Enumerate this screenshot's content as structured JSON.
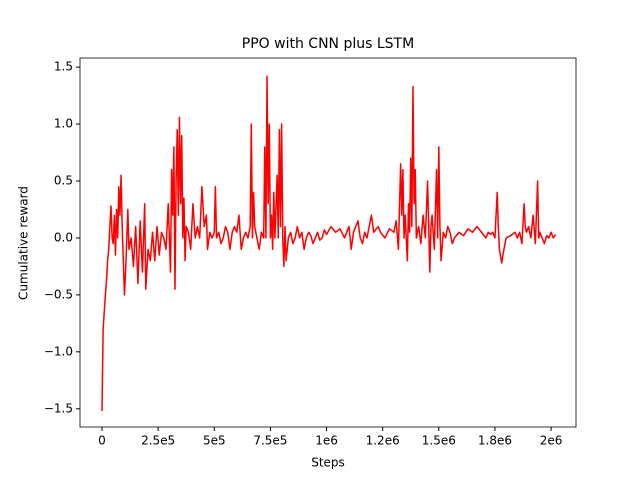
{
  "chart_data": {
    "type": "line",
    "title": "PPO with CNN plus LSTM",
    "xlabel": "Steps",
    "ylabel": "Cumulative reward",
    "xlim": [
      -98000,
      2111000
    ],
    "ylim": [
      -1.66,
      1.58
    ],
    "xticks": [
      0,
      {
        "value": 250000,
        "label": "2.5e5"
      },
      {
        "value": 500000,
        "label": "5e5"
      },
      {
        "value": 750000,
        "label": "7.5e5"
      },
      {
        "value": 1000000,
        "label": "1e6"
      },
      {
        "value": 1250000,
        "label": "1.2e6"
      },
      {
        "value": 1500000,
        "label": "1.5e6"
      },
      {
        "value": 1750000,
        "label": "1.8e6"
      },
      {
        "value": 2000000,
        "label": "2e6"
      }
    ],
    "yticks": [
      {
        "value": -1.5,
        "label": "−1.5"
      },
      {
        "value": -1,
        "label": "−1.0"
      },
      {
        "value": -0.5,
        "label": "−0.5"
      },
      {
        "value": 0,
        "label": "0.0"
      },
      0.5,
      {
        "value": 1,
        "label": "1.0"
      },
      1.5
    ],
    "x": [
      0,
      5000,
      10000,
      15000,
      20000,
      25000,
      30000,
      35000,
      40000,
      45000,
      50000,
      55000,
      60000,
      65000,
      70000,
      75000,
      80000,
      85000,
      90000,
      95000,
      100000,
      105000,
      115000,
      120000,
      130000,
      140000,
      150000,
      160000,
      170000,
      180000,
      190000,
      195000,
      205000,
      215000,
      225000,
      235000,
      245000,
      255000,
      265000,
      275000,
      285000,
      295000,
      305000,
      310000,
      315000,
      320000,
      325000,
      330000,
      335000,
      340000,
      345000,
      350000,
      355000,
      360000,
      365000,
      370000,
      375000,
      385000,
      395000,
      405000,
      415000,
      425000,
      435000,
      445000,
      455000,
      465000,
      470000,
      480000,
      490000,
      500000,
      505000,
      510000,
      520000,
      530000,
      540000,
      550000,
      560000,
      570000,
      580000,
      590000,
      600000,
      610000,
      620000,
      630000,
      640000,
      650000,
      660000,
      665000,
      670000,
      675000,
      680000,
      690000,
      700000,
      710000,
      720000,
      725000,
      730000,
      735000,
      740000,
      745000,
      750000,
      755000,
      760000,
      765000,
      770000,
      780000,
      785000,
      790000,
      795000,
      800000,
      805000,
      810000,
      815000,
      820000,
      830000,
      840000,
      850000,
      860000,
      870000,
      880000,
      890000,
      900000,
      910000,
      920000,
      930000,
      940000,
      950000,
      960000,
      970000,
      980000,
      990000,
      1000000,
      1020000,
      1040000,
      1060000,
      1080000,
      1100000,
      1110000,
      1120000,
      1140000,
      1150000,
      1160000,
      1170000,
      1180000,
      1200000,
      1210000,
      1230000,
      1240000,
      1260000,
      1280000,
      1300000,
      1310000,
      1320000,
      1330000,
      1335000,
      1340000,
      1345000,
      1350000,
      1360000,
      1365000,
      1370000,
      1375000,
      1380000,
      1385000,
      1390000,
      1395000,
      1400000,
      1410000,
      1420000,
      1430000,
      1440000,
      1450000,
      1460000,
      1465000,
      1470000,
      1480000,
      1490000,
      1495000,
      1500000,
      1505000,
      1510000,
      1520000,
      1530000,
      1540000,
      1550000,
      1560000,
      1570000,
      1590000,
      1610000,
      1630000,
      1650000,
      1670000,
      1690000,
      1710000,
      1720000,
      1730000,
      1740000,
      1750000,
      1760000,
      1765000,
      1770000,
      1780000,
      1790000,
      1800000,
      1820000,
      1840000,
      1850000,
      1860000,
      1870000,
      1880000,
      1885000,
      1890000,
      1900000,
      1910000,
      1920000,
      1930000,
      1940000,
      1945000,
      1950000,
      1960000,
      1970000,
      1980000,
      1990000,
      2000000,
      2010000,
      2020000
    ],
    "series": [
      {
        "color": "#ff0000",
        "values": [
          -1.52,
          -0.8,
          -0.65,
          -0.5,
          -0.38,
          -0.2,
          -0.1,
          0.1,
          0.28,
          0.0,
          -0.05,
          0.2,
          -0.15,
          0.25,
          0.0,
          0.45,
          0.2,
          0.55,
          0.1,
          -0.2,
          -0.5,
          -0.3,
          0.25,
          -0.1,
          0.0,
          -0.25,
          0.1,
          -0.4,
          0.15,
          -0.3,
          0.3,
          -0.45,
          -0.1,
          -0.2,
          0.05,
          -0.2,
          0.1,
          -0.15,
          0.05,
          0.0,
          -0.1,
          0.3,
          -0.3,
          0.6,
          0.2,
          0.8,
          -0.45,
          0.5,
          0.95,
          0.2,
          1.06,
          0.3,
          0.9,
          0.0,
          0.35,
          -0.2,
          0.1,
          0.05,
          -0.1,
          0.3,
          0.0,
          0.1,
          0.0,
          0.45,
          0.1,
          0.2,
          -0.1,
          0.05,
          0.0,
          0.05,
          0.45,
          0.0,
          0.05,
          -0.05,
          0.0,
          0.1,
          0.05,
          -0.1,
          0.05,
          0.1,
          0.05,
          0.2,
          -0.1,
          0.0,
          0.05,
          0.0,
          0.1,
          1.0,
          0.0,
          0.4,
          0.1,
          0.0,
          -0.1,
          0.05,
          0.0,
          0.8,
          0.0,
          1.42,
          0.3,
          1.0,
          0.0,
          0.2,
          -0.1,
          0.4,
          0.0,
          0.55,
          0.0,
          0.95,
          0.1,
          1.0,
          0.0,
          -0.25,
          0.1,
          -0.2,
          0.0,
          0.05,
          -0.05,
          0.0,
          0.1,
          0.0,
          0.05,
          -0.1,
          0.0,
          0.05,
          0.02,
          -0.05,
          0.0,
          0.05,
          -0.02,
          0.0,
          0.07,
          0.03,
          0.1,
          0.05,
          0.08,
          0.0,
          0.1,
          -0.1,
          0.05,
          0.15,
          0.0,
          -0.05,
          0.05,
          0.0,
          0.2,
          0.05,
          0.1,
          0.05,
          0.0,
          0.08,
          0.05,
          0.15,
          -0.1,
          0.65,
          0.2,
          0.6,
          0.0,
          0.2,
          -0.2,
          0.3,
          0.05,
          0.7,
          0.1,
          1.33,
          0.3,
          0.6,
          0.0,
          0.1,
          -0.05,
          0.2,
          0.0,
          0.5,
          -0.3,
          0.1,
          0.2,
          -0.1,
          0.6,
          0.0,
          0.8,
          0.1,
          -0.2,
          0.05,
          0.0,
          0.1,
          0.05,
          -0.05,
          0.0,
          0.05,
          0.02,
          0.08,
          0.05,
          0.1,
          0.05,
          0.0,
          0.05,
          0.03,
          0.05,
          0.0,
          0.4,
          0.1,
          -0.1,
          -0.22,
          -0.1,
          0.0,
          0.02,
          0.05,
          0.0,
          0.05,
          -0.05,
          0.3,
          0.1,
          0.05,
          0.1,
          0.0,
          0.2,
          -0.05,
          0.5,
          0.0,
          0.05,
          0.0,
          -0.05,
          0.02,
          0.0,
          0.05,
          0.0,
          0.03
        ]
      }
    ]
  }
}
